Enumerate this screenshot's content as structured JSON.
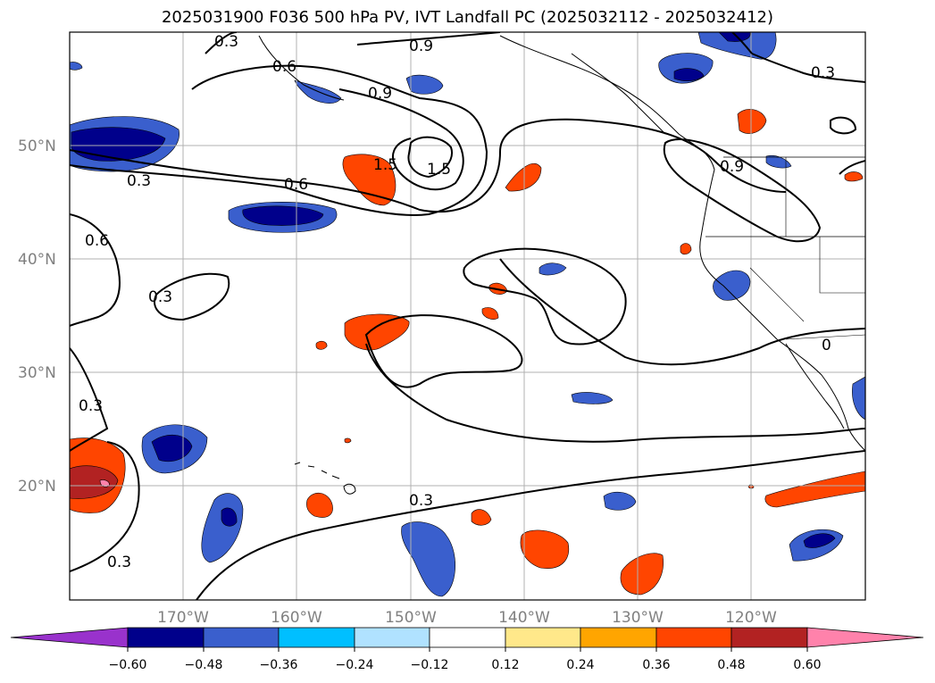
{
  "title": "2025031900 F036 500 hPa PV, IVT Landfall PC (2025032112 - 2025032412)",
  "latitude_labels": [
    "50°N",
    "40°N",
    "30°N",
    "20°N"
  ],
  "longitude_labels": [
    "170°W",
    "160°W",
    "150°W",
    "140°W",
    "130°W",
    "120°W"
  ],
  "colorbar": {
    "tick_labels": [
      "−0.60",
      "−0.48",
      "−0.36",
      "−0.24",
      "−0.12",
      "0.12",
      "0.24",
      "0.36",
      "0.48",
      "0.60"
    ],
    "colors": [
      "#9932cc",
      "#00008b",
      "#3a5fcd",
      "#00bfff",
      "#b0e2ff",
      "#ffffff",
      "#ffe88a",
      "#ffa500",
      "#ff4500",
      "#b22222",
      "#ff82ab"
    ]
  },
  "contour_labels": [
    "0.9",
    "0.6",
    "0.9",
    "0.3",
    "1.5",
    "1.5",
    "0.6",
    "0.3",
    "0.6",
    "0.3",
    "0.3",
    "0.9",
    "0.3",
    "0.3",
    "0.3",
    "0"
  ]
}
